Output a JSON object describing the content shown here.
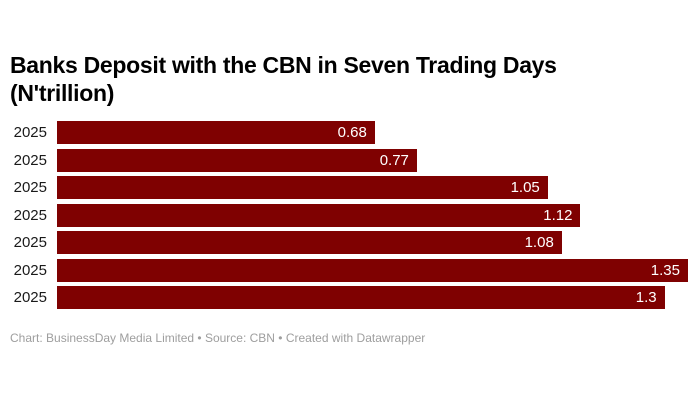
{
  "page": {
    "background": "#ffffff"
  },
  "chart_data": {
    "type": "bar",
    "orientation": "horizontal",
    "title": "Banks Deposit with the CBN in Seven Trading Days (N'trillion)",
    "categories": [
      "2025",
      "2025",
      "2025",
      "2025",
      "2025",
      "2025",
      "2025"
    ],
    "values": [
      0.68,
      0.77,
      1.05,
      1.12,
      1.08,
      1.35,
      1.3
    ],
    "value_labels": [
      "0.68",
      "0.77",
      "1.05",
      "1.12",
      "1.08",
      "1.35",
      "1.3"
    ],
    "xlim": [
      0,
      1.35
    ],
    "xlabel": "",
    "ylabel": "",
    "grid": false,
    "legend": false,
    "bar_color": "#7f0101",
    "category_label_color": "#1a1a1a",
    "value_label_color": "#ffffff",
    "title_color": "#000000"
  },
  "footer": {
    "text": "Chart: BusinessDay Media Limited  • Source: CBN • Created with Datawrapper",
    "text_color": "#9e9e9e"
  }
}
